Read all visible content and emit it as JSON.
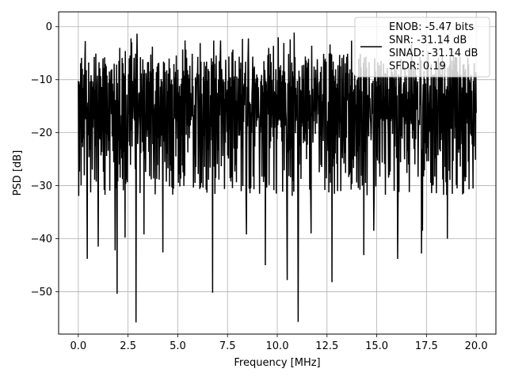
{
  "chart_data": {
    "type": "line",
    "xlabel": "Frequency [MHz]",
    "ylabel": "PSD [dB]",
    "xlim": [
      -0.99,
      20.99
    ],
    "ylim": [
      -58.0,
      2.8
    ],
    "grid": true,
    "x_ticks": [
      0.0,
      2.5,
      5.0,
      7.5,
      10.0,
      12.5,
      15.0,
      17.5,
      20.0
    ],
    "x_tick_labels": [
      "0.0",
      "2.5",
      "5.0",
      "7.5",
      "10.0",
      "12.5",
      "15.0",
      "17.5",
      "20.0"
    ],
    "y_ticks": [
      0,
      -10,
      -20,
      -30,
      -40,
      -50
    ],
    "y_tick_labels": [
      "0",
      "−10",
      "−20",
      "−30",
      "−40",
      "−50"
    ],
    "legend": {
      "placement": "upper right",
      "entries": [
        "ENOB: -5.47 bits",
        "SNR: -31.14 dB",
        "SINAD: -31.14 dB",
        "SFDR: 0.19"
      ]
    },
    "series": [
      {
        "color": "#000000",
        "x_range": [
          0.0,
          20.0
        ],
        "n_points": 1000,
        "typical_max_db": -5,
        "typical_min_db": -30,
        "peaks": [
          {
            "x": 0.35,
            "y": -2.7
          },
          {
            "x": 2.65,
            "y": -2.2
          },
          {
            "x": 2.95,
            "y": -1.3
          },
          {
            "x": 7.15,
            "y": -2.6
          },
          {
            "x": 8.25,
            "y": -2.3
          },
          {
            "x": 8.55,
            "y": -2.2
          },
          {
            "x": 10.05,
            "y": -2.0
          },
          {
            "x": 10.65,
            "y": -2.4
          },
          {
            "x": 10.85,
            "y": -1.1
          },
          {
            "x": 16.75,
            "y": -3.3
          }
        ],
        "dips": [
          {
            "x": 0.45,
            "y": -43.8
          },
          {
            "x": 1.0,
            "y": -41.5
          },
          {
            "x": 1.85,
            "y": -42.2
          },
          {
            "x": 1.95,
            "y": -50.4
          },
          {
            "x": 2.35,
            "y": -39.8
          },
          {
            "x": 2.9,
            "y": -55.8
          },
          {
            "x": 3.3,
            "y": -39.2
          },
          {
            "x": 4.25,
            "y": -42.6
          },
          {
            "x": 6.75,
            "y": -50.2
          },
          {
            "x": 8.45,
            "y": -39.2
          },
          {
            "x": 9.4,
            "y": -45.0
          },
          {
            "x": 10.5,
            "y": -47.8
          },
          {
            "x": 11.05,
            "y": -55.7
          },
          {
            "x": 11.7,
            "y": -39.0
          },
          {
            "x": 12.75,
            "y": -48.2
          },
          {
            "x": 14.35,
            "y": -43.1
          },
          {
            "x": 14.85,
            "y": -38.5
          },
          {
            "x": 16.05,
            "y": -43.8
          },
          {
            "x": 17.25,
            "y": -42.8
          },
          {
            "x": 17.3,
            "y": -38.5
          },
          {
            "x": 18.55,
            "y": -40.0
          }
        ]
      }
    ]
  }
}
